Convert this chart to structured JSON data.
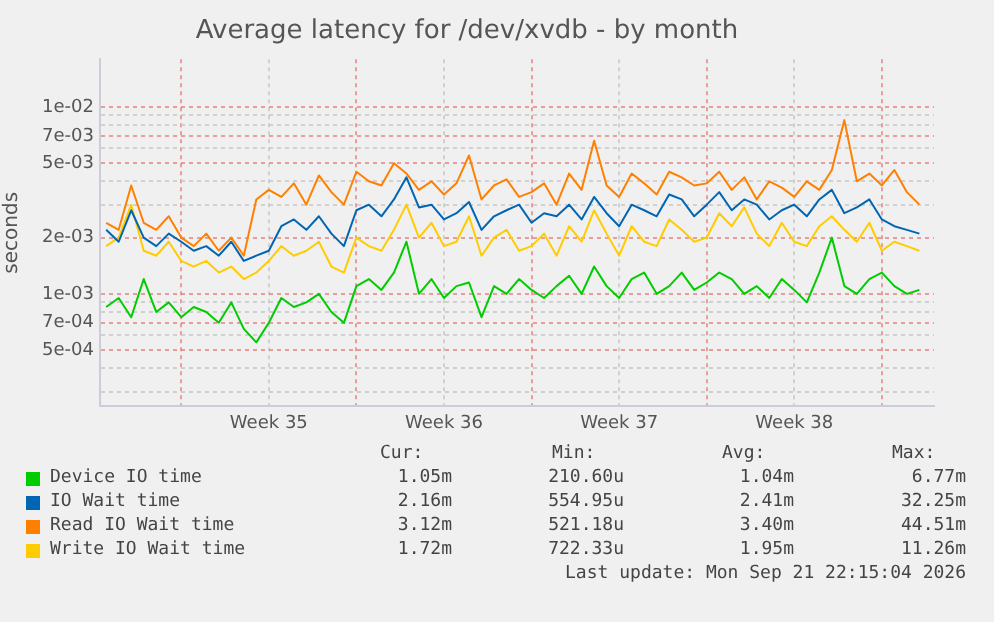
{
  "chart_data": {
    "type": "line",
    "title": "Average latency for /dev/xvdb - by month",
    "ylabel": "seconds",
    "log": "y",
    "grid": true,
    "legend": "bottom",
    "marker": "none",
    "line_style": "solid",
    "x": [
      "2026-08-21T00:00",
      "2026-08-21T12:00",
      "2026-08-22T00:00",
      "2026-08-22T12:00",
      "2026-08-23T00:00",
      "2026-08-23T12:00",
      "2026-08-24T00:00",
      "2026-08-24T12:00",
      "2026-08-25T00:00",
      "2026-08-25T12:00",
      "2026-08-26T00:00",
      "2026-08-26T12:00",
      "2026-08-27T00:00",
      "2026-08-27T12:00",
      "2026-08-28T00:00",
      "2026-08-28T12:00",
      "2026-08-29T00:00",
      "2026-08-29T12:00",
      "2026-08-30T00:00",
      "2026-08-30T12:00",
      "2026-08-31T00:00",
      "2026-08-31T12:00",
      "2026-09-01T00:00",
      "2026-09-01T12:00",
      "2026-09-02T00:00",
      "2026-09-02T12:00",
      "2026-09-03T00:00",
      "2026-09-03T12:00",
      "2026-09-04T00:00",
      "2026-09-04T12:00",
      "2026-09-05T00:00",
      "2026-09-05T12:00",
      "2026-09-06T00:00",
      "2026-09-06T12:00",
      "2026-09-07T00:00",
      "2026-09-07T12:00",
      "2026-09-08T00:00",
      "2026-09-08T12:00",
      "2026-09-09T00:00",
      "2026-09-09T12:00",
      "2026-09-10T00:00",
      "2026-09-10T12:00",
      "2026-09-11T00:00",
      "2026-09-11T12:00",
      "2026-09-12T00:00",
      "2026-09-12T12:00",
      "2026-09-13T00:00",
      "2026-09-13T12:00",
      "2026-09-14T00:00",
      "2026-09-14T12:00",
      "2026-09-15T00:00",
      "2026-09-15T12:00",
      "2026-09-16T00:00",
      "2026-09-16T12:00",
      "2026-09-17T00:00",
      "2026-09-17T12:00",
      "2026-09-18T00:00",
      "2026-09-18T12:00",
      "2026-09-19T00:00",
      "2026-09-19T12:00",
      "2026-09-20T00:00",
      "2026-09-20T12:00",
      "2026-09-21T00:00",
      "2026-09-21T12:00",
      "2026-09-22T00:00",
      "2026-09-22T12:00"
    ],
    "xlim": [
      "2026-08-20T18:00",
      "2026-09-23T02:00"
    ],
    "xticks": [
      {
        "value": "2026-08-24T00:00",
        "label": null
      },
      {
        "value": "2026-08-27T12:00",
        "label": "Week 35"
      },
      {
        "value": "2026-08-31T00:00",
        "label": null
      },
      {
        "value": "2026-09-03T12:00",
        "label": "Week 36"
      },
      {
        "value": "2026-09-07T00:00",
        "label": null
      },
      {
        "value": "2026-09-10T12:00",
        "label": "Week 37"
      },
      {
        "value": "2026-09-14T00:00",
        "label": null
      },
      {
        "value": "2026-09-17T12:00",
        "label": "Week 38"
      },
      {
        "value": "2026-09-21T00:00",
        "label": null
      }
    ],
    "ylim": [
      0.00025,
      0.018
    ],
    "yticks": [
      {
        "value": 0.0003,
        "label": null
      },
      {
        "value": 0.0004,
        "label": null
      },
      {
        "value": 0.0005,
        "label": "5e-04"
      },
      {
        "value": 0.0006,
        "label": null
      },
      {
        "value": 0.0007,
        "label": "7e-04"
      },
      {
        "value": 0.0008,
        "label": null
      },
      {
        "value": 0.0009,
        "label": null
      },
      {
        "value": 0.001,
        "label": "1e-03"
      },
      {
        "value": 0.002,
        "label": "2e-03"
      },
      {
        "value": 0.003,
        "label": null
      },
      {
        "value": 0.004,
        "label": null
      },
      {
        "value": 0.005,
        "label": "5e-03"
      },
      {
        "value": 0.006,
        "label": null
      },
      {
        "value": 0.007,
        "label": "7e-03"
      },
      {
        "value": 0.008,
        "label": null
      },
      {
        "value": 0.009,
        "label": null
      },
      {
        "value": 0.01,
        "label": "1e-02"
      }
    ],
    "series": [
      {
        "name": "Device IO time",
        "color": "#00cc00",
        "values": [
          0.00085,
          0.00095,
          0.00075,
          0.0012,
          0.0008,
          0.0009,
          0.00075,
          0.00085,
          0.0008,
          0.0007,
          0.0009,
          0.00065,
          0.00055,
          0.0007,
          0.00095,
          0.00085,
          0.0009,
          0.001,
          0.0008,
          0.0007,
          0.0011,
          0.0012,
          0.00105,
          0.0013,
          0.0019,
          0.001,
          0.0012,
          0.00095,
          0.0011,
          0.00115,
          0.00075,
          0.0011,
          0.001,
          0.0012,
          0.00105,
          0.00095,
          0.0011,
          0.00125,
          0.001,
          0.0014,
          0.0011,
          0.00095,
          0.0012,
          0.0013,
          0.001,
          0.0011,
          0.0013,
          0.00105,
          0.00115,
          0.0013,
          0.0012,
          0.001,
          0.0011,
          0.00095,
          0.0012,
          0.00105,
          0.0009,
          0.0013,
          0.002,
          0.0011,
          0.001,
          0.0012,
          0.0013,
          0.0011,
          0.001,
          0.00105
        ]
      },
      {
        "name": "IO Wait time",
        "color": "#0066b3",
        "values": [
          0.0022,
          0.0019,
          0.0028,
          0.002,
          0.0018,
          0.0021,
          0.0019,
          0.0017,
          0.0018,
          0.0016,
          0.0019,
          0.0015,
          0.0016,
          0.0017,
          0.0023,
          0.0025,
          0.0022,
          0.0026,
          0.0021,
          0.0018,
          0.0028,
          0.003,
          0.0026,
          0.0032,
          0.0042,
          0.0029,
          0.003,
          0.0025,
          0.0027,
          0.0031,
          0.0022,
          0.0026,
          0.0028,
          0.003,
          0.0024,
          0.0027,
          0.0026,
          0.003,
          0.0025,
          0.0033,
          0.0027,
          0.0023,
          0.003,
          0.0028,
          0.0026,
          0.0034,
          0.0032,
          0.0026,
          0.003,
          0.0035,
          0.0028,
          0.0032,
          0.003,
          0.0025,
          0.0028,
          0.003,
          0.0026,
          0.0032,
          0.0036,
          0.0027,
          0.0029,
          0.0032,
          0.0025,
          0.0023,
          0.0022,
          0.0021
        ]
      },
      {
        "name": "Read IO Wait time",
        "color": "#ff8000",
        "values": [
          0.0024,
          0.0022,
          0.0038,
          0.0024,
          0.0022,
          0.0026,
          0.002,
          0.0018,
          0.0021,
          0.0017,
          0.002,
          0.0016,
          0.0032,
          0.0036,
          0.0033,
          0.0039,
          0.003,
          0.0043,
          0.0035,
          0.003,
          0.0045,
          0.004,
          0.0038,
          0.005,
          0.0044,
          0.0036,
          0.004,
          0.0034,
          0.0039,
          0.0055,
          0.0032,
          0.0038,
          0.0041,
          0.0033,
          0.0035,
          0.0039,
          0.003,
          0.0044,
          0.0036,
          0.0066,
          0.0038,
          0.0033,
          0.0044,
          0.0039,
          0.0034,
          0.0045,
          0.0042,
          0.0038,
          0.0039,
          0.0045,
          0.0036,
          0.0042,
          0.0032,
          0.004,
          0.0037,
          0.0033,
          0.004,
          0.0036,
          0.0046,
          0.0085,
          0.004,
          0.0044,
          0.0038,
          0.0046,
          0.0035,
          0.003
        ]
      },
      {
        "name": "Write IO Wait time",
        "color": "#ffcc00",
        "values": [
          0.0018,
          0.002,
          0.003,
          0.0017,
          0.0016,
          0.0019,
          0.0015,
          0.0014,
          0.0015,
          0.0013,
          0.0014,
          0.0012,
          0.0013,
          0.0015,
          0.0018,
          0.0016,
          0.0017,
          0.0019,
          0.0014,
          0.0013,
          0.002,
          0.0018,
          0.0017,
          0.0022,
          0.003,
          0.002,
          0.0024,
          0.0018,
          0.0019,
          0.0026,
          0.0016,
          0.002,
          0.0022,
          0.0017,
          0.0018,
          0.0021,
          0.0016,
          0.0023,
          0.0019,
          0.0028,
          0.0021,
          0.0016,
          0.0023,
          0.0019,
          0.0018,
          0.0025,
          0.0022,
          0.0019,
          0.002,
          0.0027,
          0.0023,
          0.0029,
          0.0021,
          0.0018,
          0.0024,
          0.0019,
          0.0018,
          0.0023,
          0.0026,
          0.0022,
          0.0019,
          0.0024,
          0.0017,
          0.0019,
          0.0018,
          0.0017
        ]
      }
    ],
    "annotations": [
      "Cur:",
      "Min:",
      "Avg:",
      "Max:",
      "1.05m",
      "210.60u",
      "1.04m",
      "6.77m",
      "2.16m",
      "554.95u",
      "2.41m",
      "32.25m",
      "3.12m",
      "521.18u",
      "3.40m",
      "44.51m",
      "1.72m",
      "722.33u",
      "1.95m",
      "11.26m",
      "Last update: Mon Sep 21 22:15:04 2026"
    ]
  }
}
